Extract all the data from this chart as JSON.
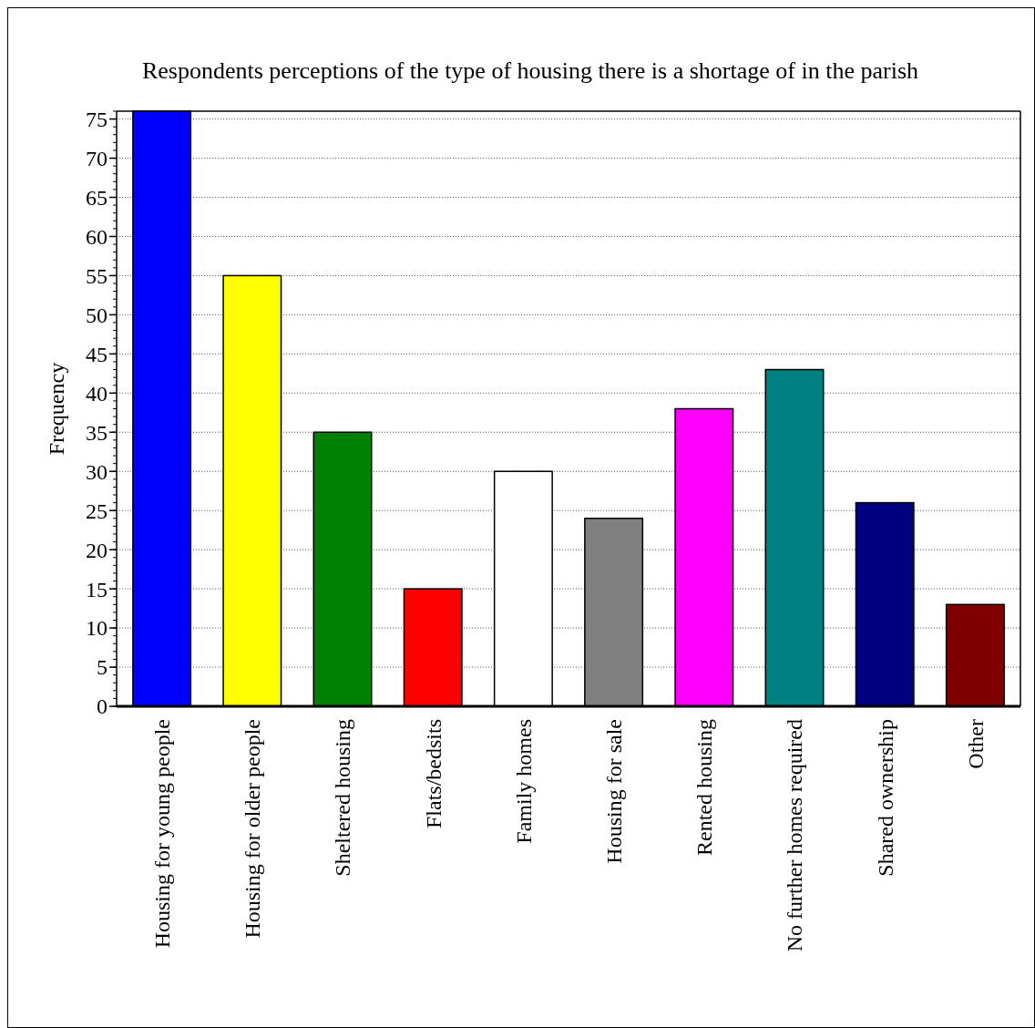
{
  "chart_data": {
    "type": "bar",
    "title": "Respondents perceptions of the type of housing there is a shortage of in the parish",
    "ylabel": "Frequency",
    "categories": [
      "Housing for young people",
      "Housing for older people",
      "Sheltered housing",
      "Flats/bedsits",
      "Family homes",
      "Housing for sale",
      "Rented housing",
      "No further homes required",
      "Shared ownership",
      "Other"
    ],
    "values": [
      76,
      55,
      35,
      15,
      30,
      24,
      38,
      43,
      26,
      13
    ],
    "colors": [
      "#0000ff",
      "#ffff00",
      "#008000",
      "#ff0000",
      "#ffffff",
      "#808080",
      "#ff00ff",
      "#008080",
      "#000080",
      "#800000"
    ],
    "ylim": [
      0,
      76
    ],
    "yticks": [
      0,
      5,
      10,
      15,
      20,
      25,
      30,
      35,
      40,
      45,
      50,
      55,
      60,
      65,
      70,
      75
    ],
    "grid": "y"
  }
}
